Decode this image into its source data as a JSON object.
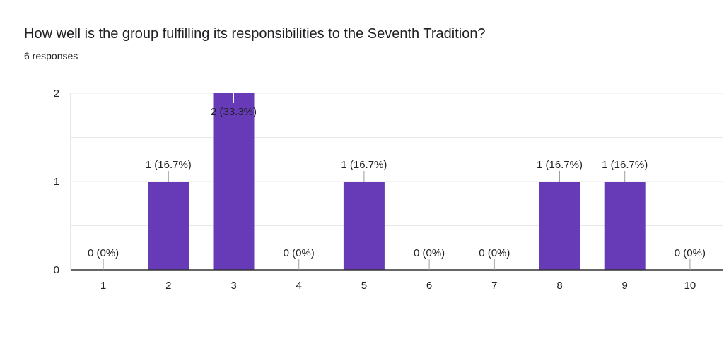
{
  "header": {
    "title": "How well is the group fulfilling its responsibilities to the Seventh Tradition?",
    "subtitle": "6 responses"
  },
  "colors": {
    "bar": "#673ab7",
    "gridline": "#e8e8e8",
    "axis": "#333333",
    "text": "#202124",
    "leader": "#9e9e9e"
  },
  "chart_data": {
    "type": "bar",
    "categories": [
      "1",
      "2",
      "3",
      "4",
      "5",
      "6",
      "7",
      "8",
      "9",
      "10"
    ],
    "values": [
      0,
      1,
      2,
      0,
      1,
      0,
      0,
      1,
      1,
      0
    ],
    "data_labels": [
      "0 (0%)",
      "1 (16.7%)",
      "2 (33.3%)",
      "0 (0%)",
      "1 (16.7%)",
      "0 (0%)",
      "0 (0%)",
      "1 (16.7%)",
      "1 (16.7%)",
      "0 (0%)"
    ],
    "y_ticks": [
      0,
      1,
      2
    ],
    "ylim": [
      0,
      2
    ],
    "title": "How well is the group fulfilling its responsibilities to the Seventh Tradition?",
    "xlabel": "",
    "ylabel": "",
    "grid": true,
    "legend": "none"
  }
}
